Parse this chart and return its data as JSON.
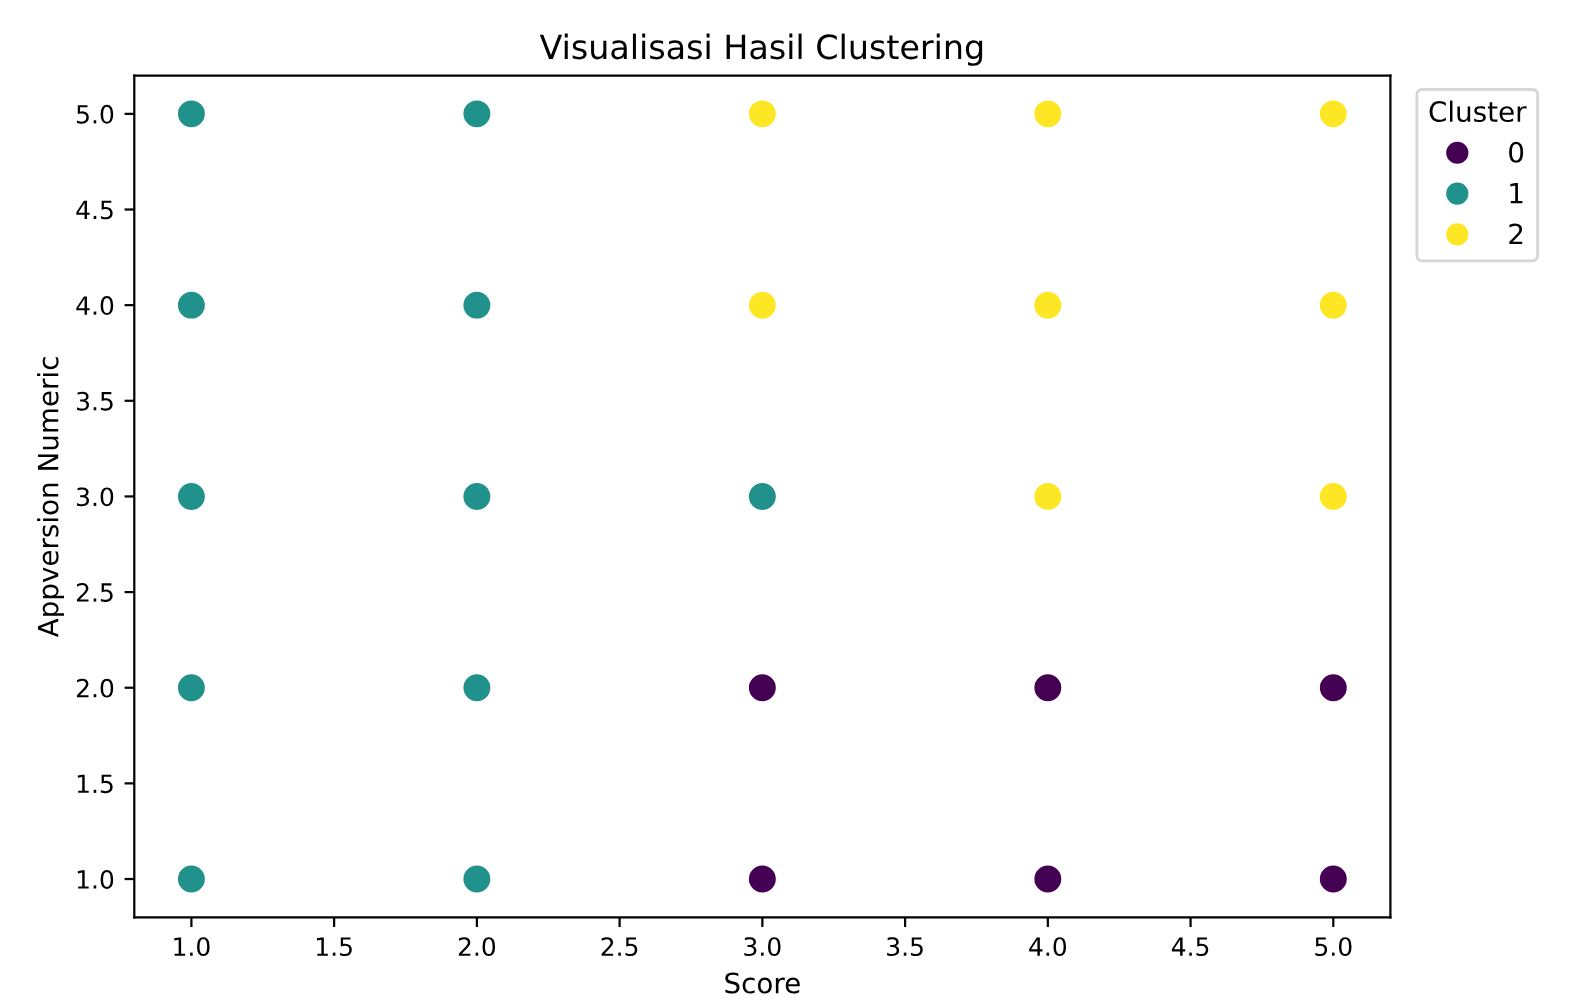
{
  "chart_data": {
    "type": "scatter",
    "title": "Visualisasi Hasil Clustering",
    "xlabel": "Score",
    "ylabel": "Appversion Numeric",
    "legend_title": "Cluster",
    "series": [
      {
        "name": "0",
        "color": "#440154",
        "x": [
          3,
          3,
          4,
          4,
          5,
          5
        ],
        "values": [
          1,
          2,
          1,
          2,
          1,
          2
        ]
      },
      {
        "name": "1",
        "color": "#21918c",
        "x": [
          1,
          1,
          1,
          1,
          1,
          2,
          2,
          2,
          2,
          2,
          3
        ],
        "values": [
          1,
          2,
          3,
          4,
          5,
          1,
          2,
          3,
          4,
          5,
          3
        ]
      },
      {
        "name": "2",
        "color": "#fde725",
        "x": [
          3,
          3,
          4,
          4,
          4,
          5,
          5,
          5
        ],
        "values": [
          4,
          5,
          3,
          4,
          5,
          3,
          4,
          5
        ]
      }
    ],
    "xlim": [
      0.8,
      5.2
    ],
    "ylim": [
      0.8,
      5.2
    ],
    "xticks": [
      {
        "value": 1,
        "label": "1.0"
      },
      {
        "value": 1.5,
        "label": "1.5"
      },
      {
        "value": 2,
        "label": "2.0"
      },
      {
        "value": 2.5,
        "label": "2.5"
      },
      {
        "value": 3,
        "label": "3.0"
      },
      {
        "value": 3.5,
        "label": "3.5"
      },
      {
        "value": 4,
        "label": "4.0"
      },
      {
        "value": 4.5,
        "label": "4.5"
      },
      {
        "value": 5,
        "label": "5.0"
      }
    ],
    "yticks": [
      {
        "value": 1,
        "label": "1.0"
      },
      {
        "value": 1.5,
        "label": "1.5"
      },
      {
        "value": 2,
        "label": "2.0"
      },
      {
        "value": 2.5,
        "label": "2.5"
      },
      {
        "value": 3,
        "label": "3.0"
      },
      {
        "value": 3.5,
        "label": "3.5"
      },
      {
        "value": 4,
        "label": "4.0"
      },
      {
        "value": 4.5,
        "label": "4.5"
      },
      {
        "value": 5,
        "label": "5.0"
      }
    ],
    "marker": "circle",
    "grid": false,
    "legend": "top right"
  }
}
